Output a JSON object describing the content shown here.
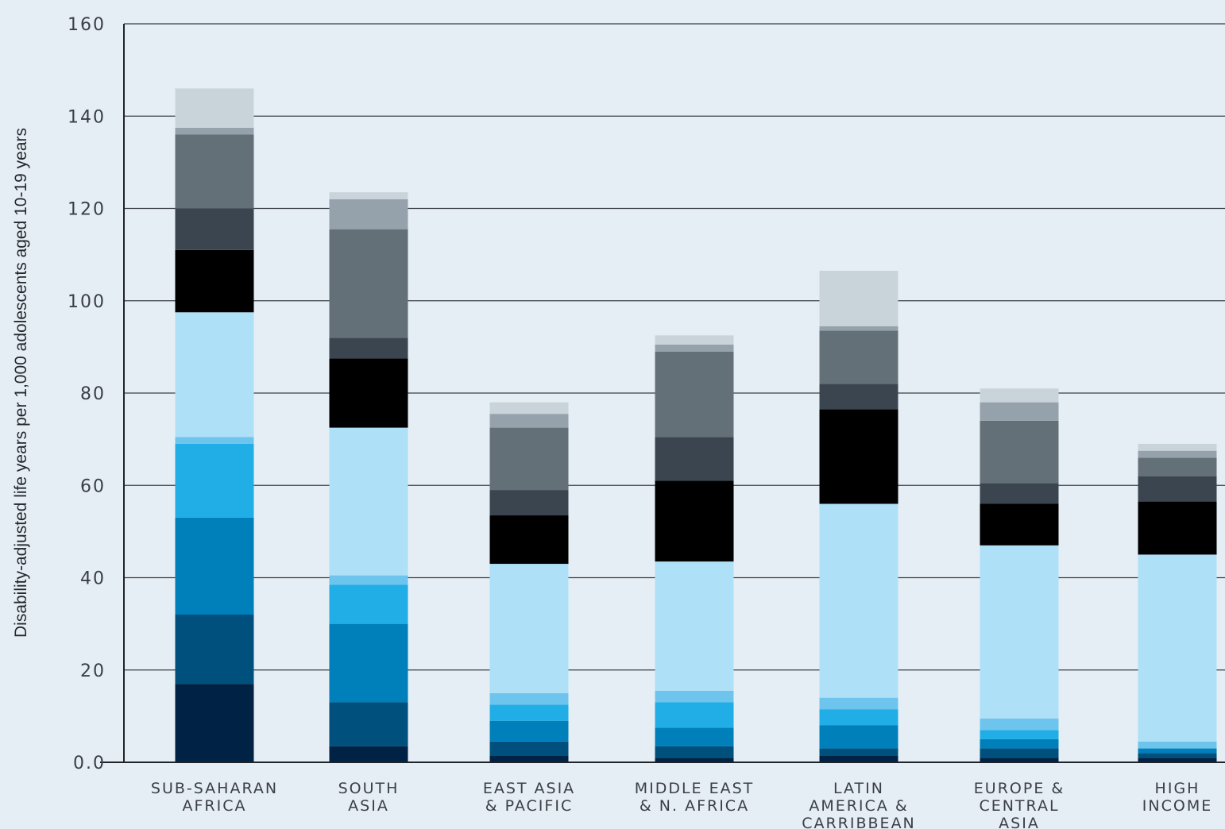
{
  "chart_data": {
    "type": "bar",
    "stacked": true,
    "ylabel": "Disability-adjusted life years per 1,000 adolescents aged 10-19 years",
    "xlabel": "",
    "ylim": [
      0,
      160
    ],
    "yticks": [
      0,
      20,
      40,
      60,
      80,
      100,
      120,
      140,
      160
    ],
    "ytick_labels": [
      "0.0",
      "20",
      "40",
      "60",
      "80",
      "100",
      "120",
      "140",
      "160"
    ],
    "grid": true,
    "categories": [
      [
        "SUB-SAHARAN",
        "AFRICA"
      ],
      [
        "SOUTH",
        "ASIA"
      ],
      [
        "EAST ASIA",
        "& PACIFIC"
      ],
      [
        "MIDDLE EAST",
        "& N. AFRICA"
      ],
      [
        "LATIN",
        "AMERICA &",
        "CARRIBBEAN"
      ],
      [
        "EUROPE &",
        "CENTRAL",
        "ASIA"
      ],
      [
        "HIGH",
        "INCOME"
      ]
    ],
    "series": [
      {
        "color": "#002244",
        "values": [
          17,
          3.5,
          1.5,
          1,
          1.5,
          1,
          1
        ]
      },
      {
        "color": "#00507e",
        "values": [
          15,
          9.5,
          3,
          2.5,
          1.5,
          2,
          1
        ]
      },
      {
        "color": "#0080bb",
        "values": [
          21,
          17,
          4.5,
          4,
          5,
          2,
          1
        ]
      },
      {
        "color": "#21aee6",
        "values": [
          16,
          8.5,
          3.5,
          5.5,
          3.5,
          2,
          0
        ]
      },
      {
        "color": "#6dc5ee",
        "values": [
          1.5,
          2,
          2.5,
          2.5,
          2.5,
          2.5,
          1.5
        ]
      },
      {
        "color": "#aee0f7",
        "values": [
          27,
          32,
          28,
          28,
          42,
          37.5,
          40.5
        ]
      },
      {
        "color": "#000000",
        "values": [
          13.5,
          15,
          10.5,
          17.5,
          20.5,
          9,
          11.5
        ]
      },
      {
        "color": "#3b454f",
        "values": [
          9,
          4.5,
          5.5,
          9.5,
          5.5,
          4.5,
          5.5
        ]
      },
      {
        "color": "#647078",
        "values": [
          16,
          23.5,
          13.5,
          18.5,
          11.5,
          13.5,
          4
        ]
      },
      {
        "color": "#96a2ab",
        "values": [
          1.5,
          6.5,
          3,
          1.5,
          1,
          4,
          1.5
        ]
      },
      {
        "color": "#c9d4da",
        "values": [
          8.5,
          1.5,
          2.5,
          2,
          12,
          3,
          1.5
        ]
      }
    ]
  },
  "colors": {
    "background": "#e6eef5",
    "grid": "#3a3f45",
    "axis": "#1f2429",
    "text": "#3a3f45"
  }
}
